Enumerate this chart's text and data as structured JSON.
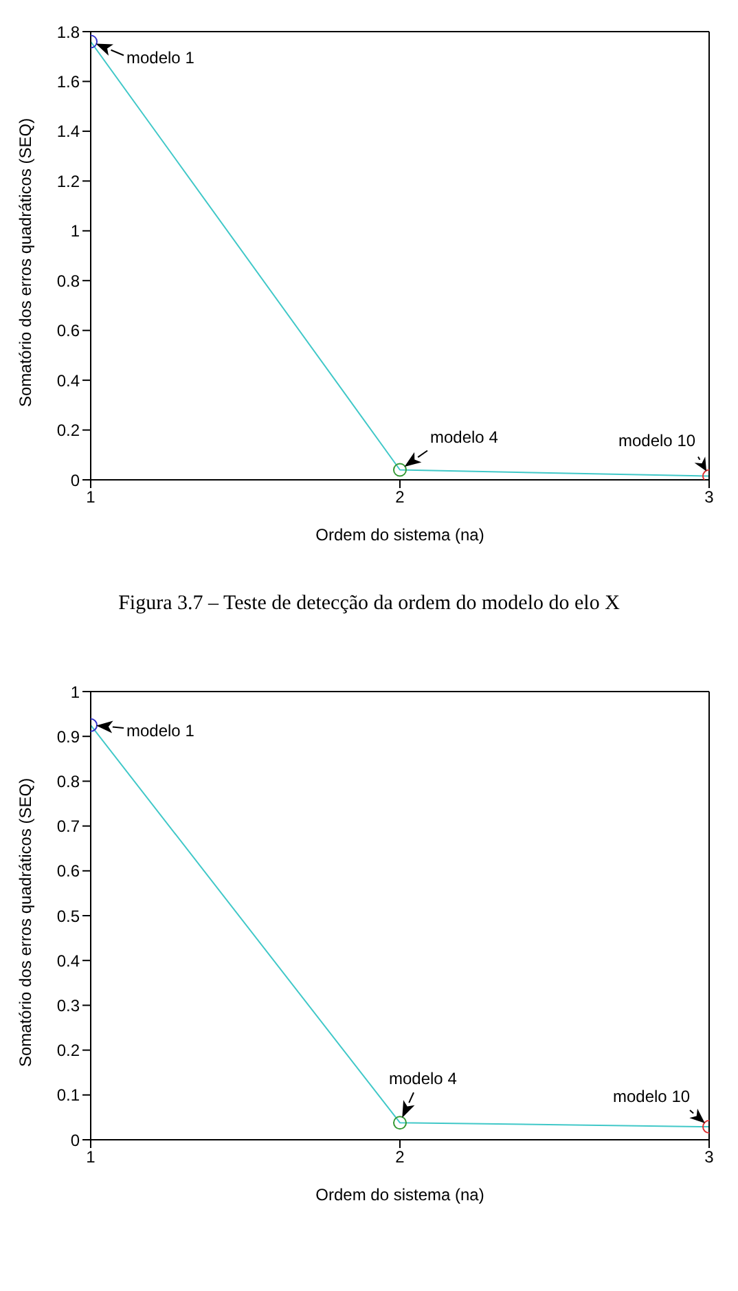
{
  "chart_data": [
    {
      "type": "line",
      "xlabel": "Ordem do sistema (na)",
      "ylabel": "Somatório dos erros quadráticos (SEQ)",
      "x": [
        1,
        2,
        3
      ],
      "xlim": [
        1,
        3
      ],
      "xticks": [
        1,
        2,
        3
      ],
      "ylim": [
        0,
        1.8
      ],
      "yticks": [
        0,
        0.2,
        0.4,
        0.6,
        0.8,
        1,
        1.2,
        1.4,
        1.6,
        1.8
      ],
      "grid": false,
      "legend": false,
      "series": [
        {
          "color": "#40c8c8",
          "values": [
            1.76,
            0.04,
            0.015
          ],
          "marker": "none"
        },
        {
          "type": "scatter",
          "colors": [
            "#3333cc",
            "#339933",
            "#dd3333"
          ],
          "values": [
            1.76,
            0.04,
            0.015
          ],
          "marker": "circle"
        }
      ],
      "annotations": [
        {
          "text": "modelo 1",
          "x": 1,
          "y": 1.76
        },
        {
          "text": "modelo 4",
          "x": 2,
          "y": 0.04
        },
        {
          "text": "modelo 10",
          "x": 3,
          "y": 0.015
        },
        "Figura 3.7 – Teste de detecção da ordem do modelo do elo X"
      ]
    },
    {
      "type": "line",
      "xlabel": "Ordem do sistema (na)",
      "ylabel": "Somatório dos erros quadráticos (SEQ)",
      "x": [
        1,
        2,
        3
      ],
      "xlim": [
        1,
        3
      ],
      "xticks": [
        1,
        2,
        3
      ],
      "ylim": [
        0,
        1
      ],
      "yticks": [
        0,
        0.1,
        0.2,
        0.3,
        0.4,
        0.5,
        0.6,
        0.7,
        0.8,
        0.9,
        1
      ],
      "grid": false,
      "legend": false,
      "series": [
        {
          "color": "#40c8c8",
          "values": [
            0.925,
            0.038,
            0.029
          ],
          "marker": "none"
        },
        {
          "type": "scatter",
          "colors": [
            "#3333cc",
            "#339933",
            "#dd3333"
          ],
          "values": [
            0.925,
            0.038,
            0.029
          ],
          "marker": "circle"
        }
      ],
      "annotations": [
        {
          "text": "modelo 1",
          "x": 1,
          "y": 0.925
        },
        {
          "text": "modelo 4",
          "x": 2,
          "y": 0.038
        },
        {
          "text": "modelo 10",
          "x": 3,
          "y": 0.029
        }
      ]
    }
  ]
}
